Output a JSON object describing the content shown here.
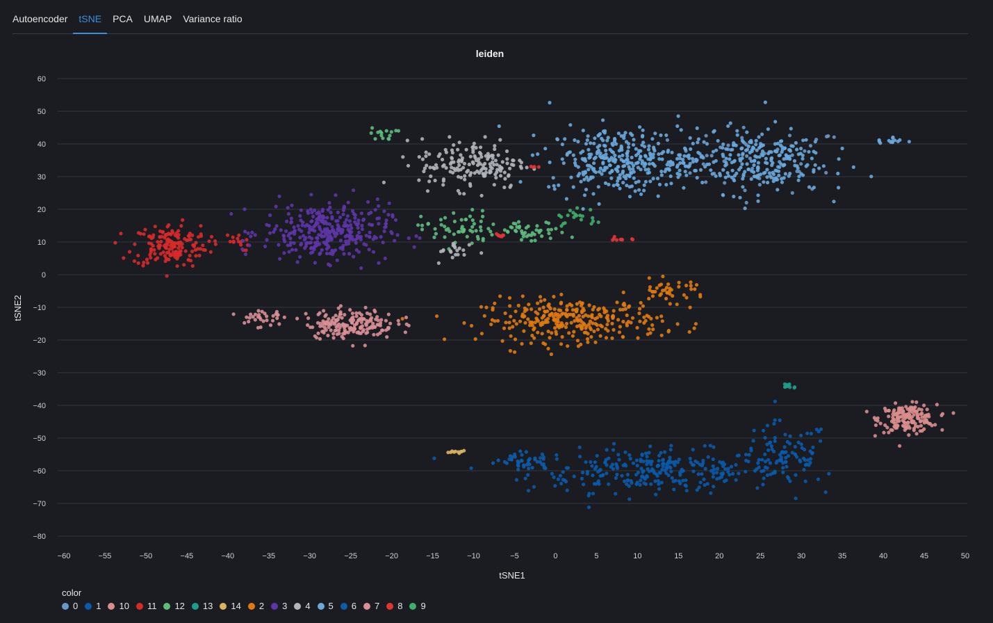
{
  "tabs": [
    {
      "label": "Autoencoder",
      "active": false
    },
    {
      "label": "tSNE",
      "active": true
    },
    {
      "label": "PCA",
      "active": false
    },
    {
      "label": "UMAP",
      "active": false
    },
    {
      "label": "Variance ratio",
      "active": false
    }
  ],
  "colors": {
    "background": "#1a1c21",
    "grid": "#33363e",
    "accent": "#3b8fd9"
  },
  "chart_data": {
    "type": "scatter",
    "title": "leiden",
    "xlabel": "tSNE1",
    "ylabel": "tSNE2",
    "xlim": [
      -60,
      50
    ],
    "ylim": [
      -80,
      60
    ],
    "xticks": [
      -60,
      -55,
      -50,
      -45,
      -40,
      -35,
      -30,
      -25,
      -20,
      -15,
      -10,
      -5,
      0,
      5,
      10,
      15,
      20,
      25,
      30,
      35,
      40,
      45,
      50
    ],
    "yticks": [
      60,
      50,
      40,
      30,
      20,
      10,
      0,
      -10,
      -20,
      -30,
      -40,
      -50,
      -60,
      -70,
      -80
    ],
    "tick_labels_x": [
      "−60",
      "−55",
      "−50",
      "−45",
      "−40",
      "−35",
      "−30",
      "−25",
      "−20",
      "−15",
      "−10",
      "−5",
      "0",
      "5",
      "10",
      "15",
      "20",
      "25",
      "30",
      "35",
      "40",
      "45",
      "50"
    ],
    "tick_labels_y": [
      "60",
      "50",
      "40",
      "30",
      "20",
      "10",
      "0",
      "−10",
      "−20",
      "−30",
      "−40",
      "−50",
      "−60",
      "−70",
      "−80"
    ],
    "grid": "horizontal",
    "legend_title": "color",
    "legend_position": "bottom-left",
    "series": [
      {
        "name": "0",
        "color": "#6b97c4",
        "clusters": [
          {
            "cx": 25,
            "cy": 35,
            "sx": 10,
            "sy": 9,
            "n": 60
          }
        ]
      },
      {
        "name": "1",
        "color": "#0a5aab",
        "clusters": [
          {
            "cx": 12,
            "cy": -60,
            "sx": 14,
            "sy": 6,
            "n": 280
          },
          {
            "cx": 28,
            "cy": -55,
            "sx": 5,
            "sy": 9,
            "n": 90
          }
        ]
      },
      {
        "name": "10",
        "color": "#d98d8d",
        "clusters": [
          {
            "cx": 43,
            "cy": -44,
            "sx": 3.2,
            "sy": 3.8,
            "n": 170
          }
        ]
      },
      {
        "name": "11",
        "color": "#d72a2a",
        "clusters": [
          {
            "cx": -47,
            "cy": 9,
            "sx": 4.2,
            "sy": 6,
            "n": 170
          },
          {
            "cx": -39,
            "cy": 10,
            "sx": 1.5,
            "sy": 2.5,
            "n": 15
          }
        ]
      },
      {
        "name": "12",
        "color": "#5fbb7e",
        "clusters": [
          {
            "cx": -21,
            "cy": 43,
            "sx": 1.5,
            "sy": 1.8,
            "n": 15
          },
          {
            "cx": -12,
            "cy": 14,
            "sx": 4,
            "sy": 5,
            "n": 55
          },
          {
            "cx": -3,
            "cy": 13,
            "sx": 4,
            "sy": 3,
            "n": 45
          }
        ]
      },
      {
        "name": "13",
        "color": "#1f9b8a",
        "clusters": [
          {
            "cx": 28.5,
            "cy": -34,
            "sx": 0.9,
            "sy": 0.8,
            "n": 14
          }
        ]
      },
      {
        "name": "14",
        "color": "#d9b560",
        "clusters": [
          {
            "cx": -12,
            "cy": -54.2,
            "sx": 0.9,
            "sy": 0.3,
            "n": 10
          }
        ]
      },
      {
        "name": "2",
        "color": "#e07a10",
        "clusters": [
          {
            "cx": 2,
            "cy": -14,
            "sx": 10,
            "sy": 6,
            "n": 300
          },
          {
            "cx": 14,
            "cy": -5,
            "sx": 4,
            "sy": 3,
            "n": 40
          }
        ]
      },
      {
        "name": "3",
        "color": "#5e35a8",
        "clusters": [
          {
            "cx": -28,
            "cy": 13,
            "sx": 7,
            "sy": 8,
            "n": 330
          }
        ]
      },
      {
        "name": "4",
        "color": "#b3b5bb",
        "clusters": [
          {
            "cx": -10,
            "cy": 34,
            "sx": 6,
            "sy": 7,
            "n": 170
          },
          {
            "cx": -12,
            "cy": 7,
            "sx": 2.5,
            "sy": 3,
            "n": 20
          }
        ]
      },
      {
        "name": "5",
        "color": "#6aa9db",
        "clusters": [
          {
            "cx": 8,
            "cy": 35,
            "sx": 8,
            "sy": 9,
            "n": 330
          },
          {
            "cx": 24,
            "cy": 35,
            "sx": 8,
            "sy": 9,
            "n": 250
          },
          {
            "cx": 41,
            "cy": 41,
            "sx": 1.8,
            "sy": 1.2,
            "n": 14
          }
        ]
      },
      {
        "name": "6",
        "color": "#0e5ca8",
        "clusters": [
          {
            "cx": -4,
            "cy": -57,
            "sx": 3,
            "sy": 2.5,
            "n": 40
          }
        ]
      },
      {
        "name": "7",
        "color": "#d88f96",
        "clusters": [
          {
            "cx": -25,
            "cy": -15,
            "sx": 5,
            "sy": 4,
            "n": 180
          },
          {
            "cx": -36,
            "cy": -13,
            "sx": 2.5,
            "sy": 3,
            "n": 30
          }
        ]
      },
      {
        "name": "8",
        "color": "#e23434",
        "clusters": [
          {
            "cx": -7,
            "cy": 12,
            "sx": 0.8,
            "sy": 0.5,
            "n": 9
          },
          {
            "cx": 8,
            "cy": 11,
            "sx": 1,
            "sy": 0.8,
            "n": 9
          },
          {
            "cx": -2.5,
            "cy": 33,
            "sx": 0.5,
            "sy": 0.3,
            "n": 4
          }
        ]
      },
      {
        "name": "9",
        "color": "#3fae6a",
        "clusters": [
          {
            "cx": 3,
            "cy": 17,
            "sx": 3,
            "sy": 3,
            "n": 20
          }
        ]
      }
    ]
  }
}
